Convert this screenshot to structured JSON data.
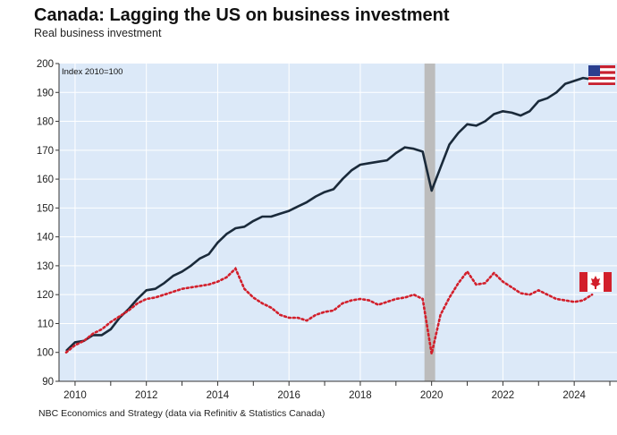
{
  "title": "Canada: Lagging the US on business investment",
  "subtitle": "Real business investment",
  "source": "NBC Economics and Strategy (data via Refinitiv & Statistics Canada)",
  "chart_data": {
    "type": "line",
    "title": "Canada: Lagging the US on business investment",
    "subtitle": "Real business investment",
    "annotation": "Index 2010=100",
    "ylim": [
      90,
      200
    ],
    "yticks": [
      90,
      100,
      110,
      120,
      130,
      140,
      150,
      160,
      170,
      180,
      190,
      200
    ],
    "xlim": [
      2009.55,
      2025.2
    ],
    "xticks": [
      2010,
      2012,
      2014,
      2016,
      2018,
      2020,
      2022,
      2024
    ],
    "grid": true,
    "recession_shading": [
      2019.8,
      2020.1
    ],
    "colors": {
      "background": "#dce9f8",
      "us": "#1a2a3a",
      "canada": "#d21f2b",
      "shade": "#bcbcbc"
    },
    "series": [
      {
        "name": "United States",
        "legend_icon": "us-flag",
        "style": "solid",
        "points": [
          [
            2009.75,
            100.5
          ],
          [
            2010.0,
            103.5
          ],
          [
            2010.25,
            104.0
          ],
          [
            2010.5,
            106.0
          ],
          [
            2010.75,
            106.0
          ],
          [
            2011.0,
            108.0
          ],
          [
            2011.25,
            112.0
          ],
          [
            2011.5,
            115.0
          ],
          [
            2011.75,
            118.5
          ],
          [
            2012.0,
            121.5
          ],
          [
            2012.25,
            122.0
          ],
          [
            2012.5,
            124.0
          ],
          [
            2012.75,
            126.5
          ],
          [
            2013.0,
            128.0
          ],
          [
            2013.25,
            130.0
          ],
          [
            2013.5,
            132.5
          ],
          [
            2013.75,
            134.0
          ],
          [
            2014.0,
            138.0
          ],
          [
            2014.25,
            141.0
          ],
          [
            2014.5,
            143.0
          ],
          [
            2014.75,
            143.5
          ],
          [
            2015.0,
            145.5
          ],
          [
            2015.25,
            147.0
          ],
          [
            2015.5,
            147.0
          ],
          [
            2015.75,
            148.0
          ],
          [
            2016.0,
            149.0
          ],
          [
            2016.25,
            150.5
          ],
          [
            2016.5,
            152.0
          ],
          [
            2016.75,
            154.0
          ],
          [
            2017.0,
            155.5
          ],
          [
            2017.25,
            156.5
          ],
          [
            2017.5,
            160.0
          ],
          [
            2017.75,
            163.0
          ],
          [
            2018.0,
            165.0
          ],
          [
            2018.25,
            165.5
          ],
          [
            2018.5,
            166.0
          ],
          [
            2018.75,
            166.5
          ],
          [
            2019.0,
            169.0
          ],
          [
            2019.25,
            171.0
          ],
          [
            2019.5,
            170.5
          ],
          [
            2019.75,
            169.5
          ],
          [
            2020.0,
            156.0
          ],
          [
            2020.25,
            164.0
          ],
          [
            2020.5,
            172.0
          ],
          [
            2020.75,
            176.0
          ],
          [
            2021.0,
            179.0
          ],
          [
            2021.25,
            178.5
          ],
          [
            2021.5,
            180.0
          ],
          [
            2021.75,
            182.5
          ],
          [
            2022.0,
            183.5
          ],
          [
            2022.25,
            183.0
          ],
          [
            2022.5,
            182.0
          ],
          [
            2022.75,
            183.5
          ],
          [
            2023.0,
            187.0
          ],
          [
            2023.25,
            188.0
          ],
          [
            2023.5,
            190.0
          ],
          [
            2023.75,
            193.0
          ],
          [
            2024.0,
            194.0
          ],
          [
            2024.25,
            195.0
          ],
          [
            2024.5,
            194.5
          ]
        ]
      },
      {
        "name": "Canada",
        "legend_icon": "canada-flag",
        "style": "dotted",
        "points": [
          [
            2009.75,
            100.0
          ],
          [
            2010.0,
            102.5
          ],
          [
            2010.25,
            104.0
          ],
          [
            2010.5,
            106.5
          ],
          [
            2010.75,
            108.0
          ],
          [
            2011.0,
            110.5
          ],
          [
            2011.25,
            112.5
          ],
          [
            2011.5,
            114.5
          ],
          [
            2011.75,
            117.0
          ],
          [
            2012.0,
            118.5
          ],
          [
            2012.25,
            119.0
          ],
          [
            2012.5,
            120.0
          ],
          [
            2012.75,
            121.0
          ],
          [
            2013.0,
            122.0
          ],
          [
            2013.25,
            122.5
          ],
          [
            2013.5,
            123.0
          ],
          [
            2013.75,
            123.5
          ],
          [
            2014.0,
            124.5
          ],
          [
            2014.25,
            126.0
          ],
          [
            2014.5,
            129.0
          ],
          [
            2014.75,
            122.0
          ],
          [
            2015.0,
            119.0
          ],
          [
            2015.25,
            117.0
          ],
          [
            2015.5,
            115.5
          ],
          [
            2015.75,
            113.0
          ],
          [
            2016.0,
            112.0
          ],
          [
            2016.25,
            112.0
          ],
          [
            2016.5,
            111.0
          ],
          [
            2016.75,
            113.0
          ],
          [
            2017.0,
            114.0
          ],
          [
            2017.25,
            114.5
          ],
          [
            2017.5,
            117.0
          ],
          [
            2017.75,
            118.0
          ],
          [
            2018.0,
            118.5
          ],
          [
            2018.25,
            118.0
          ],
          [
            2018.5,
            116.5
          ],
          [
            2018.75,
            117.5
          ],
          [
            2019.0,
            118.5
          ],
          [
            2019.25,
            119.0
          ],
          [
            2019.5,
            120.0
          ],
          [
            2019.75,
            118.5
          ],
          [
            2020.0,
            99.5
          ],
          [
            2020.25,
            113.0
          ],
          [
            2020.5,
            119.0
          ],
          [
            2020.75,
            124.0
          ],
          [
            2021.0,
            128.0
          ],
          [
            2021.25,
            123.5
          ],
          [
            2021.5,
            124.0
          ],
          [
            2021.75,
            127.5
          ],
          [
            2022.0,
            124.5
          ],
          [
            2022.25,
            122.5
          ],
          [
            2022.5,
            120.5
          ],
          [
            2022.75,
            120.0
          ],
          [
            2023.0,
            121.5
          ],
          [
            2023.25,
            120.0
          ],
          [
            2023.5,
            118.5
          ],
          [
            2023.75,
            118.0
          ],
          [
            2024.0,
            117.5
          ],
          [
            2024.25,
            118.0
          ],
          [
            2024.5,
            120.0
          ]
        ]
      }
    ]
  }
}
